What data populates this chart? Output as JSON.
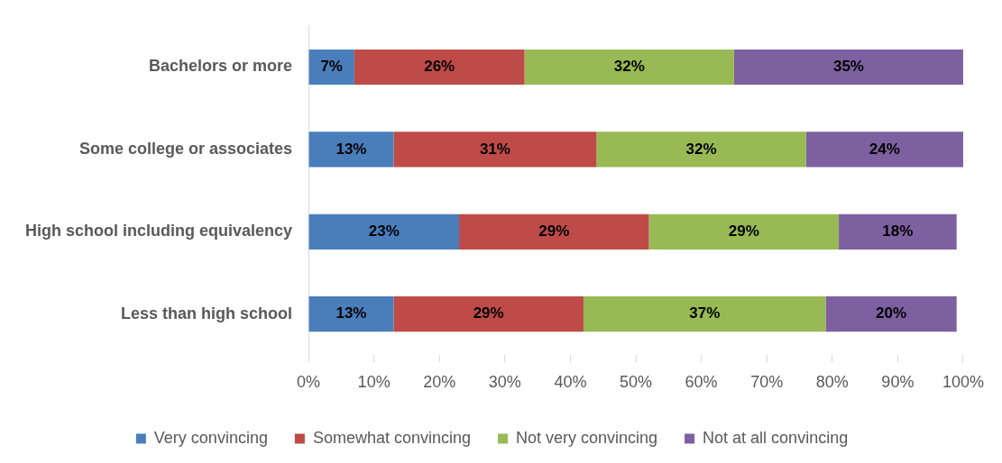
{
  "chart_data": {
    "type": "bar",
    "orientation": "horizontal",
    "stacked": true,
    "categories": [
      "Bachelors or more",
      "Some college or associates",
      "High school including equivalency",
      "Less than high school"
    ],
    "series": [
      {
        "name": "Very convincing",
        "color": "#4a7ebb",
        "values": [
          7,
          13,
          23,
          13
        ],
        "value_labels": [
          "7%",
          "13%",
          "23%",
          "13%"
        ]
      },
      {
        "name": "Somewhat convincing",
        "color": "#be4b48",
        "values": [
          26,
          31,
          29,
          29
        ],
        "value_labels": [
          "26%",
          "31%",
          "29%",
          "29%"
        ]
      },
      {
        "name": "Not very convincing",
        "color": "#98b954",
        "values": [
          32,
          32,
          29,
          37
        ],
        "value_labels": [
          "32%",
          "32%",
          "29%",
          "37%"
        ]
      },
      {
        "name": "Not at all convincing",
        "color": "#7d60a0",
        "values": [
          35,
          24,
          18,
          20
        ],
        "value_labels": [
          "35%",
          "24%",
          "18%",
          "20%"
        ]
      }
    ],
    "xlim": [
      0,
      100
    ],
    "xticks": [
      {
        "value": 0,
        "label": "0%"
      },
      {
        "value": 10,
        "label": "10%"
      },
      {
        "value": 20,
        "label": "20%"
      },
      {
        "value": 30,
        "label": "30%"
      },
      {
        "value": 40,
        "label": "40%"
      },
      {
        "value": 50,
        "label": "50%"
      },
      {
        "value": 60,
        "label": "60%"
      },
      {
        "value": 70,
        "label": "70%"
      },
      {
        "value": 80,
        "label": "80%"
      },
      {
        "value": 90,
        "label": "90%"
      },
      {
        "value": 100,
        "label": "100%"
      }
    ],
    "grid": false,
    "legend": "bottom"
  }
}
